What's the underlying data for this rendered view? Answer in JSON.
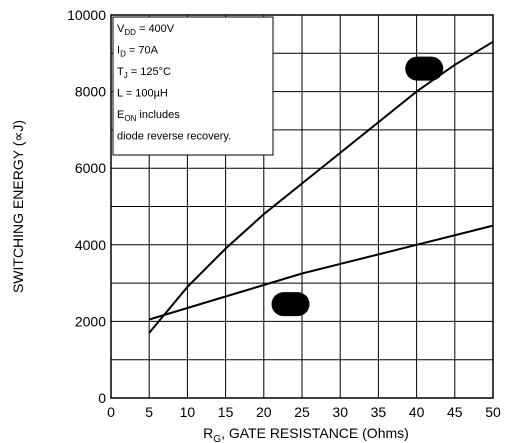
{
  "chart_data": {
    "type": "line",
    "xlabel_prefix": "R",
    "xlabel_sub": "G",
    "xlabel_rest": ", GATE RESISTANCE (Ohms)",
    "ylabel": "SWITCHING ENERGY (∝J)",
    "xlim": [
      0,
      50
    ],
    "ylim": [
      0,
      10000
    ],
    "x_ticks": [
      0,
      5,
      10,
      15,
      20,
      25,
      30,
      35,
      40,
      45,
      50
    ],
    "y_ticks": [
      0,
      2000,
      4000,
      6000,
      8000,
      10000
    ],
    "grid": true,
    "series": [
      {
        "color": "#000000",
        "x": [
          5,
          10,
          15,
          20,
          25,
          30,
          35,
          40,
          45,
          50
        ],
        "y": [
          1700,
          2900,
          3900,
          4800,
          5600,
          6400,
          7200,
          8000,
          8700,
          9300
        ]
      },
      {
        "color": "#000000",
        "x": [
          5,
          10,
          15,
          20,
          25,
          30,
          35,
          40,
          45,
          50
        ],
        "y": [
          2050,
          2350,
          2650,
          2950,
          3250,
          3500,
          3750,
          4000,
          4250,
          4500
        ]
      }
    ],
    "markers": [
      {
        "shape": "pill",
        "x": 41,
        "y": 8600
      },
      {
        "shape": "pill",
        "x": 23.5,
        "y": 2450
      }
    ],
    "conditions_box": {
      "lines": [
        {
          "main": "V",
          "sub": "DD",
          "rest": " = 400V"
        },
        {
          "main": "I",
          "sub": "D",
          "rest": " = 70A"
        },
        {
          "main": "T",
          "sub": "J",
          "rest": " = 125°C"
        },
        {
          "main": "L = 100µH",
          "sub": "",
          "rest": ""
        },
        {
          "main": "E",
          "sub": "ON",
          "rest": "  includes"
        },
        {
          "main": "diode  reverse  recovery.",
          "sub": "",
          "rest": ""
        }
      ]
    }
  }
}
